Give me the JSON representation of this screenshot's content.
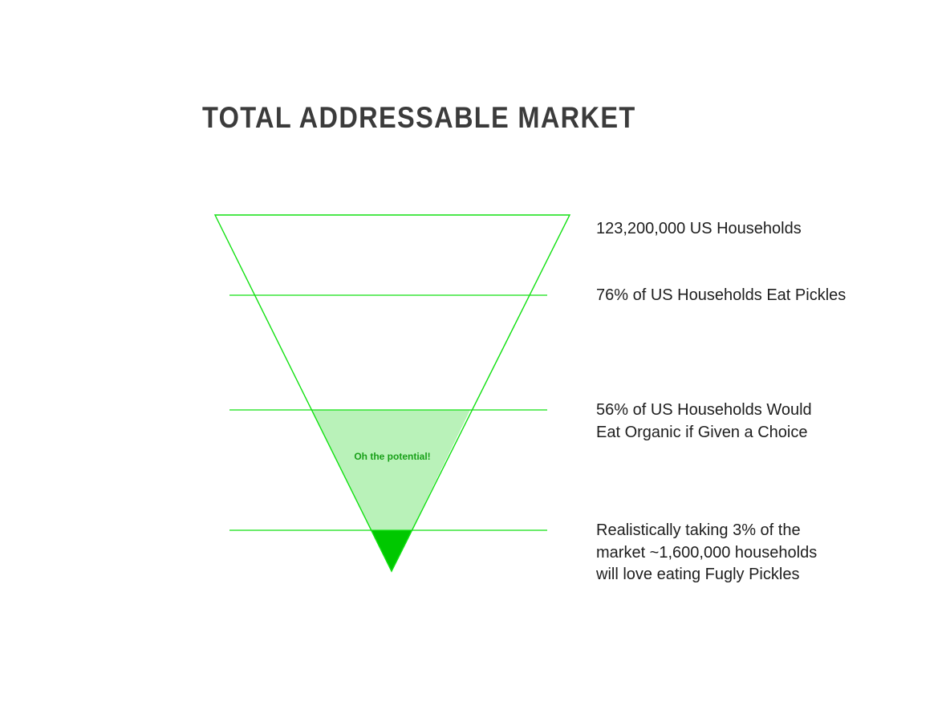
{
  "title": "TOTAL ADDRESSABLE MARKET",
  "funnel": {
    "potential_label": "Oh the potential!",
    "colors": {
      "line": "#11e011",
      "potential_fill": "#b9f2b9",
      "target_fill": "#00c800",
      "title": "#3b3b3b"
    }
  },
  "tiers": [
    {
      "text": "123,200,000 US Households"
    },
    {
      "text": "76% of US Households Eat Pickles"
    },
    {
      "text": "56% of US Households Would\nEat Organic if Given a Choice"
    },
    {
      "text": "Realistically taking 3% of the\nmarket ~1,600,000 households\nwill love eating Fugly Pickles"
    }
  ]
}
